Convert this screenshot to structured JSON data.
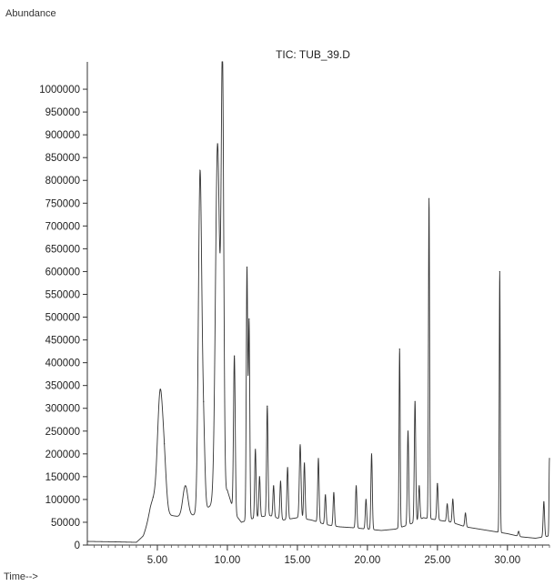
{
  "chart_data": {
    "type": "line",
    "title": "TIC: TUB_39.D",
    "ylabel": "Abundance",
    "xlabel": "Time-->",
    "xlim": [
      0,
      33
    ],
    "ylim": [
      0,
      1060000
    ],
    "grid": false,
    "legend": "none",
    "line_color": "#333333",
    "yticks": [
      0,
      50000,
      100000,
      150000,
      200000,
      250000,
      300000,
      350000,
      400000,
      450000,
      500000,
      550000,
      600000,
      650000,
      700000,
      750000,
      800000,
      850000,
      900000,
      950000,
      1000000
    ],
    "xticks": [
      5,
      10,
      15,
      20,
      25,
      30
    ],
    "xtick_labels": [
      "5.00",
      "10.00",
      "15.00",
      "20.00",
      "25.00",
      "30.00"
    ],
    "baseline": [
      [
        0,
        8000
      ],
      [
        2,
        7000
      ],
      [
        3.5,
        6000
      ],
      [
        4,
        20000
      ],
      [
        4.5,
        60000
      ],
      [
        5,
        80000
      ],
      [
        6,
        65000
      ],
      [
        7,
        60000
      ],
      [
        8,
        70000
      ],
      [
        9,
        90000
      ],
      [
        10,
        120000
      ],
      [
        10.5,
        70000
      ],
      [
        11,
        50000
      ],
      [
        12,
        60000
      ],
      [
        13,
        65000
      ],
      [
        14,
        55000
      ],
      [
        15,
        60000
      ],
      [
        16,
        55000
      ],
      [
        17,
        45000
      ],
      [
        18,
        40000
      ],
      [
        19,
        38000
      ],
      [
        20,
        35000
      ],
      [
        21,
        32000
      ],
      [
        22,
        35000
      ],
      [
        23,
        45000
      ],
      [
        24,
        60000
      ],
      [
        25,
        55000
      ],
      [
        26,
        50000
      ],
      [
        27,
        40000
      ],
      [
        28,
        35000
      ],
      [
        29,
        30000
      ],
      [
        30,
        25000
      ],
      [
        31,
        18000
      ],
      [
        32,
        15000
      ],
      [
        33,
        20000
      ]
    ],
    "peaks": [
      [
        4.7,
        100000,
        0.25
      ],
      [
        5.2,
        325000,
        0.18
      ],
      [
        5.5,
        160000,
        0.15
      ],
      [
        7.0,
        130000,
        0.18
      ],
      [
        8.05,
        815000,
        0.12
      ],
      [
        8.3,
        230000,
        0.1
      ],
      [
        9.3,
        880000,
        0.15
      ],
      [
        9.65,
        1040000,
        0.09
      ],
      [
        10.5,
        415000,
        0.06
      ],
      [
        11.4,
        605000,
        0.05
      ],
      [
        11.55,
        490000,
        0.05
      ],
      [
        12.0,
        210000,
        0.05
      ],
      [
        12.3,
        150000,
        0.05
      ],
      [
        12.85,
        305000,
        0.05
      ],
      [
        13.3,
        130000,
        0.05
      ],
      [
        13.8,
        140000,
        0.05
      ],
      [
        14.3,
        170000,
        0.05
      ],
      [
        15.2,
        220000,
        0.06
      ],
      [
        15.5,
        180000,
        0.05
      ],
      [
        16.5,
        190000,
        0.05
      ],
      [
        17.0,
        110000,
        0.05
      ],
      [
        17.6,
        115000,
        0.05
      ],
      [
        19.2,
        130000,
        0.05
      ],
      [
        19.9,
        100000,
        0.05
      ],
      [
        20.3,
        200000,
        0.05
      ],
      [
        22.3,
        430000,
        0.04
      ],
      [
        22.9,
        250000,
        0.05
      ],
      [
        23.4,
        315000,
        0.05
      ],
      [
        23.7,
        130000,
        0.05
      ],
      [
        24.4,
        760000,
        0.04
      ],
      [
        25.0,
        135000,
        0.05
      ],
      [
        25.7,
        90000,
        0.05
      ],
      [
        26.1,
        100000,
        0.05
      ],
      [
        27.0,
        70000,
        0.05
      ],
      [
        29.45,
        600000,
        0.035
      ],
      [
        30.8,
        30000,
        0.05
      ],
      [
        32.6,
        95000,
        0.05
      ],
      [
        33.0,
        190000,
        0.03
      ]
    ]
  }
}
